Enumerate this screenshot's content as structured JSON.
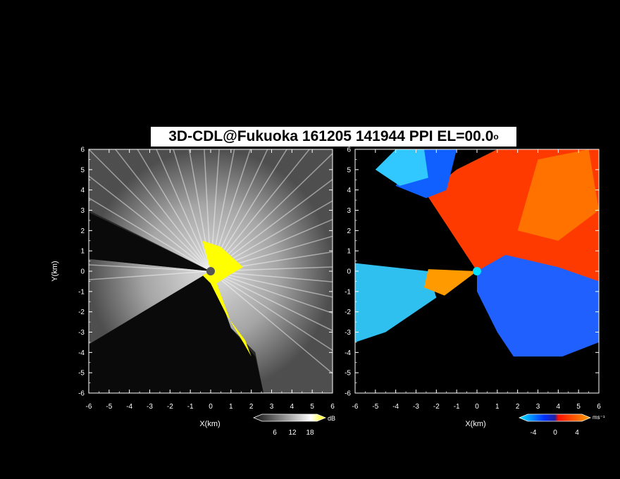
{
  "title": {
    "main": "3D-CDL@Fukuoka 161205 141944 PPI EL=00.0",
    "degree_mark": "o"
  },
  "chart_data": [
    {
      "type": "heatmap",
      "panel": "reflectivity",
      "xlabel": "X(km)",
      "ylabel": "Y(km)",
      "xlim": [
        -6,
        6
      ],
      "ylim": [
        -6,
        6
      ],
      "x_ticks": [
        "-6",
        "-5",
        "-4",
        "-3",
        "-2",
        "-1",
        "0",
        "1",
        "2",
        "3",
        "4",
        "5",
        "6"
      ],
      "y_ticks": [
        "6",
        "5",
        "4",
        "3",
        "2",
        "1",
        "0",
        "-1",
        "-2",
        "-3",
        "-4",
        "-5",
        "-6"
      ],
      "colorbar": {
        "label": "dB",
        "ticks": [
          "6",
          "12",
          "18"
        ],
        "colors": [
          "#000000",
          "#ffffff",
          "#ffff00"
        ]
      },
      "highlight_color": "#ffff00"
    },
    {
      "type": "heatmap",
      "panel": "doppler_velocity",
      "xlabel": "X(km)",
      "ylabel": "",
      "xlim": [
        -6,
        6
      ],
      "ylim": [
        -6,
        6
      ],
      "x_ticks": [
        "-6",
        "-5",
        "-4",
        "-3",
        "-2",
        "-1",
        "0",
        "1",
        "2",
        "3",
        "4",
        "5",
        "6"
      ],
      "y_ticks": [
        "6",
        "5",
        "4",
        "3",
        "2",
        "1",
        "0",
        "-1",
        "-2",
        "-3",
        "-4",
        "-5",
        "-6"
      ],
      "colorbar": {
        "label": "ms⁻¹",
        "ticks": [
          "-4",
          "0",
          "4"
        ],
        "colors": [
          "#00e0ff",
          "#0040ff",
          "#ff2000",
          "#ff9000"
        ]
      }
    }
  ]
}
